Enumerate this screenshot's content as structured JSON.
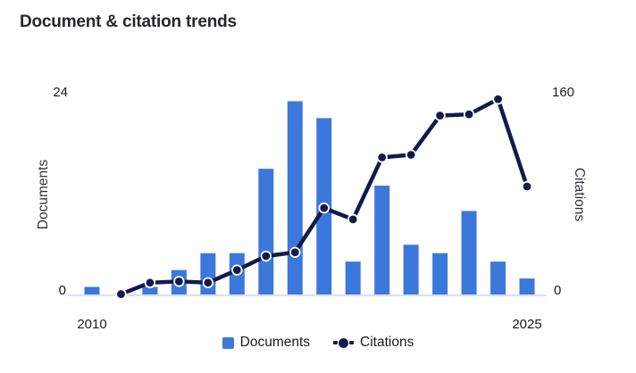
{
  "title": "Document & citation trends",
  "colors": {
    "bar": "#3c78dc",
    "line": "#121a4d",
    "axis_line": "#d9e1f2",
    "title_text": "#26262b",
    "tick_text": "#1b1b1f"
  },
  "axes": {
    "left": {
      "title": "Documents",
      "max_label": "24",
      "min_label": "0"
    },
    "right": {
      "title": "Citations",
      "max_label": "160",
      "min_label": "0"
    },
    "x": {
      "first_label": "2010",
      "last_label": "2025"
    }
  },
  "legend": {
    "documents_label": "Documents",
    "citations_label": "Citations"
  },
  "chart_data": {
    "type": "combo-bar-line",
    "x": [
      2010,
      2011,
      2012,
      2013,
      2014,
      2015,
      2016,
      2017,
      2018,
      2019,
      2020,
      2021,
      2022,
      2023,
      2024,
      2025
    ],
    "series": [
      {
        "name": "Documents",
        "type": "bar",
        "axis": "left",
        "values": [
          1,
          0,
          1,
          3,
          5,
          5,
          15,
          23,
          21,
          4,
          13,
          6,
          5,
          10,
          4,
          2
        ]
      },
      {
        "name": "Citations",
        "type": "line",
        "axis": "right",
        "values": [
          null,
          1,
          10,
          11,
          10,
          20,
          31,
          34,
          69,
          60,
          109,
          111,
          142,
          143,
          155,
          86
        ]
      }
    ],
    "ylim_left": [
      0,
      24
    ],
    "ylim_right": [
      0,
      160
    ],
    "xlim": [
      2010,
      2025
    ],
    "grid": false,
    "legend_position": "bottom"
  }
}
